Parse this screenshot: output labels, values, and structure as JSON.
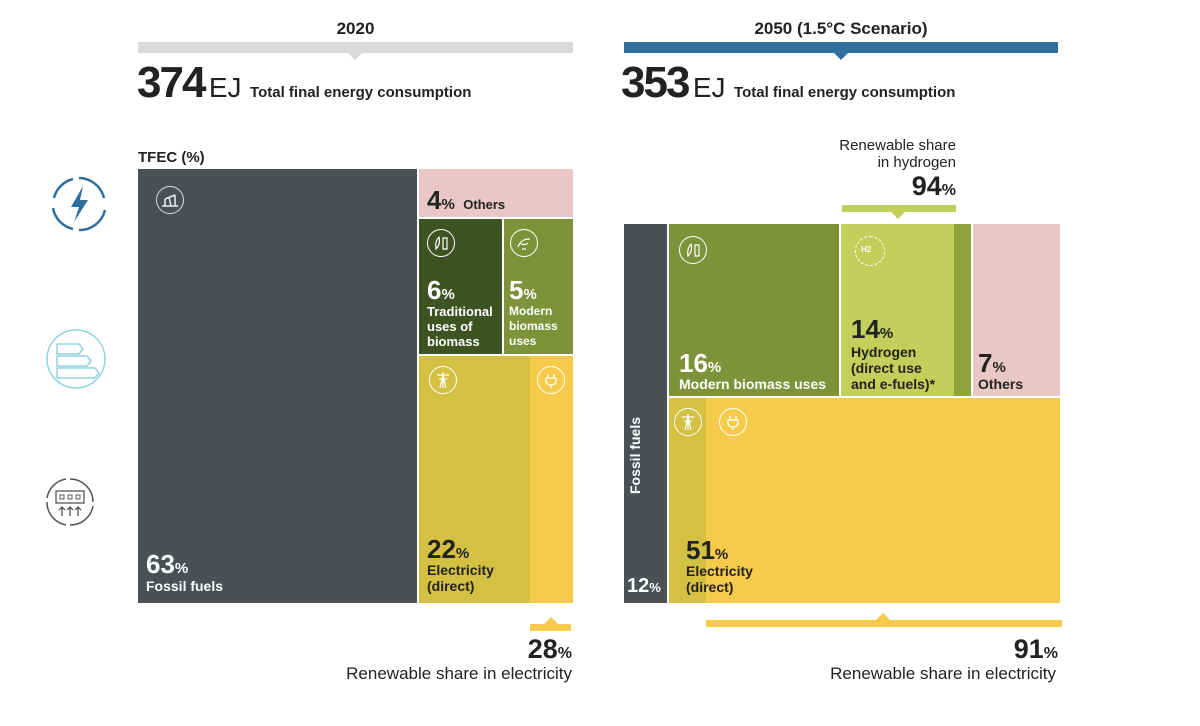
{
  "left": {
    "year": "2020",
    "total": "374",
    "unit": "EJ",
    "total_label": "Total final energy consumption",
    "tfec_label": "TFEC (%)",
    "share_value": "28",
    "share_label": "Renewable share in electricity"
  },
  "right": {
    "year": "2050 (1.5°C Scenario)",
    "total": "353",
    "unit": "EJ",
    "total_label": "Total final energy consumption",
    "share_value": "91",
    "share_label": "Renewable share in electricity",
    "hydrogen_share_label_1": "Renewable share",
    "hydrogen_share_label_2": "in hydrogen",
    "hydrogen_share_value": "94"
  },
  "pct_sign": "%",
  "colors": {
    "fossil": "#4a5053",
    "others": "#e8c7c6",
    "traditional": "#3d5321",
    "modern": "#7f9139",
    "electricity": "#f6cb4b",
    "electricity_dark": "#d4c043",
    "hydrogen": "#c1cf5b",
    "bar_2020": "#d9d9d9",
    "bar_2050": "#2f6fa0"
  },
  "side_icons": [
    "power-sector-icon",
    "energy-efficiency-icon",
    "industry-icon"
  ],
  "chart_data": [
    {
      "type": "treemap",
      "title": "2020",
      "total_ej": 374,
      "unit": "% of TFEC",
      "segments": [
        {
          "name": "Fossil fuels",
          "value": 63
        },
        {
          "name": "Others",
          "value": 4
        },
        {
          "name": "Traditional uses of biomass",
          "value": 6
        },
        {
          "name": "Modern biomass uses",
          "value": 5
        },
        {
          "name": "Electricity (direct)",
          "value": 22
        }
      ],
      "renewable_share_in_electricity": 28
    },
    {
      "type": "treemap",
      "title": "2050 (1.5°C Scenario)",
      "total_ej": 353,
      "unit": "% of TFEC",
      "segments": [
        {
          "name": "Fossil fuels",
          "value": 12
        },
        {
          "name": "Modern biomass uses",
          "value": 16
        },
        {
          "name": "Hydrogen (direct use and e-fuels)*",
          "value": 14
        },
        {
          "name": "Others",
          "value": 7
        },
        {
          "name": "Electricity (direct)",
          "value": 51
        }
      ],
      "renewable_share_in_hydrogen": 94,
      "renewable_share_in_electricity": 91
    }
  ],
  "labels_2020": {
    "fossil_value": "63",
    "fossil_label": "Fossil fuels",
    "others_value": "4",
    "others_label": "Others",
    "trad_value": "6",
    "trad_label_1": "Traditional",
    "trad_label_2": "uses of",
    "trad_label_3": "biomass",
    "modern_value": "5",
    "modern_label_1": "Modern",
    "modern_label_2": "biomass",
    "modern_label_3": "uses",
    "elec_value": "22",
    "elec_label_1": "Electricity",
    "elec_label_2": "(direct)"
  },
  "labels_2050": {
    "fossil_value": "12",
    "fossil_label": "Fossil fuels",
    "modern_value": "16",
    "modern_label": "Modern biomass uses",
    "h2_value": "14",
    "h2_label_1": "Hydrogen",
    "h2_label_2": "(direct use",
    "h2_label_3": "and e-fuels)*",
    "h2_icon_text": "H2",
    "others_value": "7",
    "others_label": "Others",
    "elec_value": "51",
    "elec_label_1": "Electricity",
    "elec_label_2": "(direct)"
  }
}
